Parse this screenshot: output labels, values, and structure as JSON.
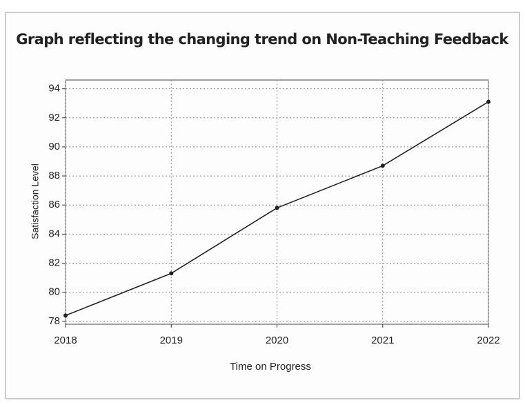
{
  "chart_data": {
    "type": "line",
    "title": "Graph reflecting the changing trend on Non-Teaching Feedback",
    "x_label": "Time on Progress",
    "y_label": "Satisfaction Level",
    "x": [
      2018,
      2019,
      2020,
      2021,
      2022
    ],
    "series": [
      {
        "name": "Satisfaction Level",
        "color": "#222222",
        "values": [
          78.4,
          81.3,
          85.8,
          88.7,
          93.1
        ]
      }
    ],
    "xlim": [
      2018,
      2022
    ],
    "xticks": [
      2018,
      2019,
      2020,
      2021,
      2022
    ],
    "ylim": [
      77.8,
      94.6
    ],
    "yticks": [
      78,
      80,
      82,
      84,
      86,
      88,
      90,
      92,
      94
    ],
    "grid": true
  }
}
